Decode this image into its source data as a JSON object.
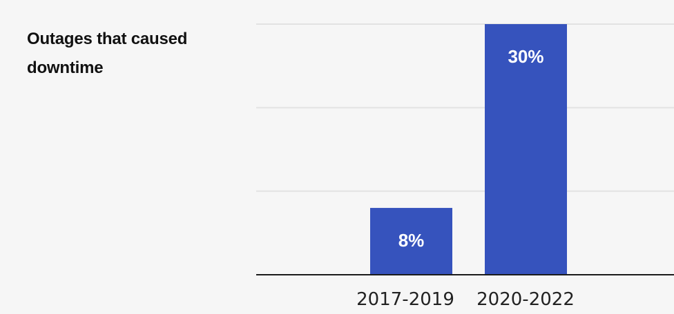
{
  "chart_data": {
    "type": "bar",
    "title": "Outages that caused downtime",
    "categories": [
      "2017-2019",
      "2020-2022"
    ],
    "values": [
      8,
      30
    ],
    "value_labels": [
      "8%",
      "30%"
    ],
    "xlabel": "",
    "ylabel": "",
    "ylim": [
      0,
      30
    ],
    "grid": true,
    "bar_color": "#3653bd",
    "legend": "none"
  }
}
